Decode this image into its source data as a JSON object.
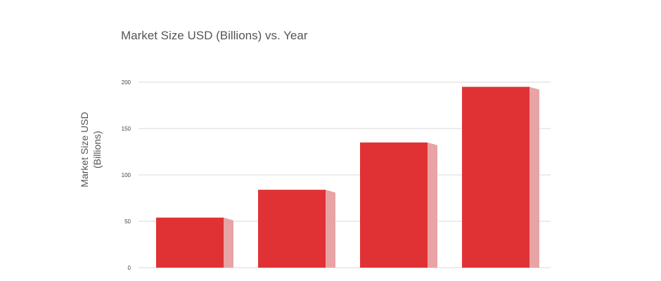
{
  "chart_data": {
    "type": "bar",
    "title": "Market Size USD (Billions) vs. Year",
    "xlabel": "",
    "ylabel_lines": [
      "Market Size USD",
      "(Billions)"
    ],
    "categories": [
      "",
      "",
      "",
      ""
    ],
    "values": [
      54,
      84,
      135,
      195
    ],
    "ylim": [
      0,
      200
    ],
    "yticks": [
      0,
      50,
      100,
      150,
      200
    ],
    "grid": true,
    "legend": "none",
    "colors": {
      "bar_face": "#e03234",
      "bar_side": "#e8a3a5",
      "grid": "#d9d9d9",
      "text": "#555555"
    }
  }
}
